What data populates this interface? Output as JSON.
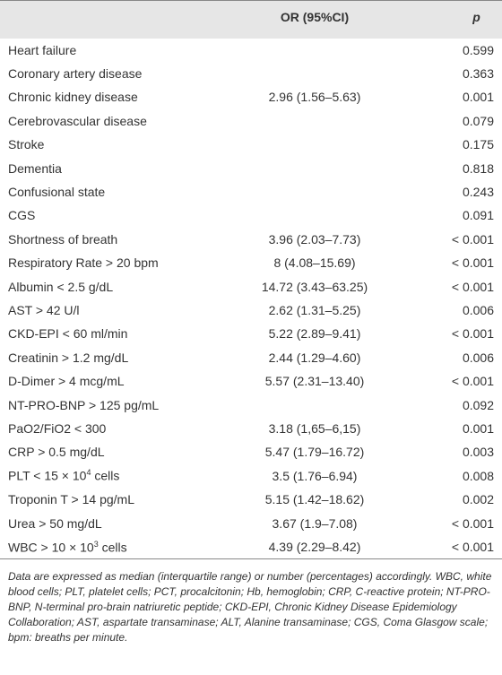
{
  "table": {
    "header": [
      "OR (95%CI)",
      "p"
    ],
    "rows": [
      {
        "label": "Heart failure",
        "p": "0.599"
      },
      {
        "label": "Coronary artery disease",
        "p": "0.363"
      },
      {
        "label": "Chronic kidney disease",
        "or": "2.96 (1.56–5.63)",
        "p": "0.001"
      },
      {
        "label": "Cerebrovascular disease",
        "p": "0.079"
      },
      {
        "label": "Stroke",
        "p": "0.175"
      },
      {
        "label": "Dementia",
        "p": "0.818"
      },
      {
        "label": "Confusional state",
        "p": "0.243"
      },
      {
        "label": "CGS",
        "p": "0.091"
      },
      {
        "label": "Shortness of breath",
        "or": "3.96 (2.03–7.73)",
        "p": "< 0.001"
      },
      {
        "label": "Respiratory Rate > 20 bpm",
        "or": "8 (4.08–15.69)",
        "p": "< 0.001"
      },
      {
        "label": "Albumin < 2.5 g/dL",
        "or": "14.72 (3.43–63.25)",
        "p": "< 0.001"
      },
      {
        "label": "AST > 42 U/l",
        "or": "2.62 (1.31–5.25)",
        "p": "0.006"
      },
      {
        "label": "CKD-EPI < 60 ml/min",
        "or": "5.22 (2.89–9.41)",
        "p": "< 0.001"
      },
      {
        "label": "Creatinin > 1.2 mg/dL",
        "or": "2.44 (1.29–4.60)",
        "p": "0.006"
      },
      {
        "label": "D-Dimer > 4 mcg/mL",
        "or": "5.57 (2.31–13.40)",
        "p": "< 0.001"
      },
      {
        "label": "NT-PRO-BNP > 125 pg/mL",
        "p": "0.092"
      },
      {
        "label": "PaO2/FiO2 < 300",
        "or": "3.18 (1,65–6,15)",
        "p": "0.001"
      },
      {
        "label": "CRP > 0.5 mg/dL",
        "or": "5.47 (1.79–16.72)",
        "p": "0.003"
      },
      {
        "label": [
          "PLT < 15 × 10",
          "4",
          " cells"
        ],
        "or": "3.5 (1.76–6.94)",
        "p": "0.008"
      },
      {
        "label": "Troponin T > 14 pg/mL",
        "or": "5.15 (1.42–18.62)",
        "p": "0.002"
      },
      {
        "label": "Urea > 50 mg/dL",
        "or": "3.67 (1.9–7.08)",
        "p": "< 0.001"
      },
      {
        "label": [
          "WBC > 10 × 10",
          "3",
          " cells"
        ],
        "or": "4.39 (2.29–8.42)",
        "p": "< 0.001"
      }
    ],
    "footnote": "Data are expressed as median (interquartile range) or number (percentages) accordingly. WBC, white blood cells; PLT, platelet cells; PCT, procalcitonin; Hb, hemoglobin; CRP, C-reactive protein; NT-PRO-BNP, N-terminal pro-brain natriuretic peptide; CKD-EPI, Chronic Kidney Disease Epidemiology Collaboration; AST, aspartate transaminase; ALT, Alanine transaminase; CGS, Coma Glasgow scale; bpm: breaths per minute."
  }
}
